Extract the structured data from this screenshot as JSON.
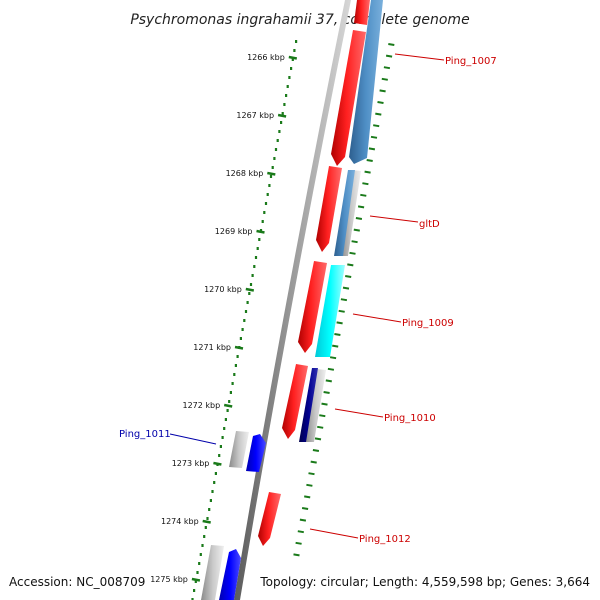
{
  "title": "Psychromonas ingrahamii 37, complete genome",
  "footer": {
    "accession": "Accession: NC_008709",
    "summary": "Topology: circular; Length: 4,559,598 bp; Genes: 3,664"
  },
  "scale": {
    "unit": "kbp",
    "ticks": [
      {
        "label": "1266 kbp",
        "kbp": 1266
      },
      {
        "label": "1267 kbp",
        "kbp": 1267
      },
      {
        "label": "1268 kbp",
        "kbp": 1268
      },
      {
        "label": "1269 kbp",
        "kbp": 1269
      },
      {
        "label": "1270 kbp",
        "kbp": 1270
      },
      {
        "label": "1271 kbp",
        "kbp": 1271
      },
      {
        "label": "1272 kbp",
        "kbp": 1272
      },
      {
        "label": "1273 kbp",
        "kbp": 1273
      },
      {
        "label": "1274 kbp",
        "kbp": 1274
      },
      {
        "label": "1275 kbp",
        "kbp": 1275
      }
    ]
  },
  "colors": {
    "backbone": "#808080",
    "cds": "#ff0000",
    "tick": "#1a7a1a",
    "label_forward": "#cc0000",
    "label_reverse": "#0000aa",
    "steelblue": "#4682b4",
    "cyan": "#00ffff",
    "navy": "#000080",
    "blue": "#0000ff",
    "gray": "#b0b0b0"
  },
  "genes": [
    {
      "label": "Ping_1007",
      "strand": "+",
      "start_kbp": 1265.6,
      "end_kbp": 1267.8
    },
    {
      "label": "gltD",
      "strand": "+",
      "start_kbp": 1267.9,
      "end_kbp": 1269.4
    },
    {
      "label": "Ping_1009",
      "strand": "+",
      "start_kbp": 1269.6,
      "end_kbp": 1271.1
    },
    {
      "label": "Ping_1010",
      "strand": "+",
      "start_kbp": 1271.3,
      "end_kbp": 1272.6
    },
    {
      "label": "Ping_1011",
      "strand": "-",
      "start_kbp": 1272.5,
      "end_kbp": 1273.2
    },
    {
      "label": "Ping_1012",
      "strand": "+",
      "start_kbp": 1273.8,
      "end_kbp": 1274.7
    }
  ]
}
